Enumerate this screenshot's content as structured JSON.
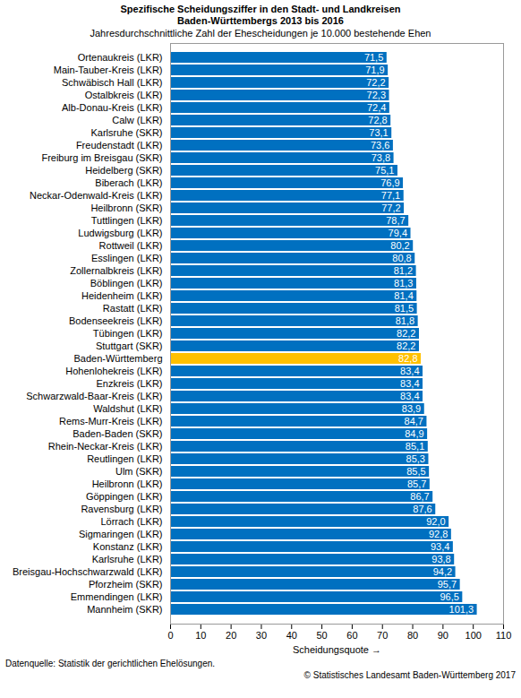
{
  "chart_data": {
    "type": "bar",
    "orientation": "horizontal",
    "title": "Spezifische Scheidungsziffer in den Stadt- und Landkreisen\nBaden-Württembergs 2013 bis 2016",
    "subtitle": "Jahresdurchschnittliche Zahl der Ehescheidungen je 10.000 bestehende Ehen",
    "xlabel": "Scheidungsquote",
    "source": "Datenquelle: Statistik der gerichtlichen Ehelösungen.",
    "copyright": "© Statistisches Landesamt Baden-Württemberg 2017",
    "categories": [
      "Ortenaukreis (LKR)",
      "Main-Tauber-Kreis (LKR)",
      "Schwäbisch Hall (LKR)",
      "Ostalbkreis (LKR)",
      "Alb-Donau-Kreis (LKR)",
      "Calw (LKR)",
      "Karlsruhe (SKR)",
      "Freudenstadt (LKR)",
      "Freiburg im Breisgau (SKR)",
      "Heidelberg (SKR)",
      "Biberach (LKR)",
      "Neckar-Odenwald-Kreis (LKR)",
      "Heilbronn (SKR)",
      "Tuttlingen (LKR)",
      "Ludwigsburg (LKR)",
      "Rottweil (LKR)",
      "Esslingen (LKR)",
      "Zollernalbkreis (LKR)",
      "Böblingen (LKR)",
      "Heidenheim (LKR)",
      "Rastatt (LKR)",
      "Bodenseekreis (LKR)",
      "Tübingen (LKR)",
      "Stuttgart (SKR)",
      "Baden-Württemberg",
      "Hohenlohekreis (LKR)",
      "Enzkreis (LKR)",
      "Schwarzwald-Baar-Kreis (LKR)",
      "Waldshut (LKR)",
      "Rems-Murr-Kreis (LKR)",
      "Baden-Baden (SKR)",
      "Rhein-Neckar-Kreis (LKR)",
      "Reutlingen (LKR)",
      "Ulm (SKR)",
      "Heilbronn (LKR)",
      "Göppingen (LKR)",
      "Ravensburg (LKR)",
      "Lörrach (LKR)",
      "Sigmaringen (LKR)",
      "Konstanz (LKR)",
      "Karlsruhe (LKR)",
      "Breisgau-Hochschwarzwald (LKR)",
      "Pforzheim (SKR)",
      "Emmendingen (LKR)",
      "Mannheim (SKR)"
    ],
    "values": [
      71.5,
      71.9,
      72.2,
      72.3,
      72.4,
      72.8,
      73.1,
      73.6,
      73.8,
      75.1,
      76.9,
      77.1,
      77.2,
      78.7,
      79.4,
      80.2,
      80.8,
      81.2,
      81.3,
      81.4,
      81.5,
      81.8,
      82.2,
      82.2,
      82.8,
      83.4,
      83.4,
      83.4,
      83.9,
      84.7,
      84.9,
      85.1,
      85.3,
      85.5,
      85.7,
      86.7,
      87.6,
      92.0,
      92.8,
      93.4,
      93.8,
      94.2,
      95.7,
      96.5,
      101.3
    ],
    "value_labels": [
      "71,5",
      "71,9",
      "72,2",
      "72,3",
      "72,4",
      "72,8",
      "73,1",
      "73,6",
      "73,8",
      "75,1",
      "76,9",
      "77,1",
      "77,2",
      "78,7",
      "79,4",
      "80,2",
      "80,8",
      "81,2",
      "81,3",
      "81,4",
      "81,5",
      "81,8",
      "82,2",
      "82,2",
      "82,8",
      "83,4",
      "83,4",
      "83,4",
      "83,9",
      "84,7",
      "84,9",
      "85,1",
      "85,3",
      "85,5",
      "85,7",
      "86,7",
      "87,6",
      "92,0",
      "92,8",
      "93,4",
      "93,8",
      "94,2",
      "95,7",
      "96,5",
      "101,3"
    ],
    "colors": [
      "#0070c0",
      "#0070c0",
      "#0070c0",
      "#0070c0",
      "#0070c0",
      "#0070c0",
      "#0070c0",
      "#0070c0",
      "#0070c0",
      "#0070c0",
      "#0070c0",
      "#0070c0",
      "#0070c0",
      "#0070c0",
      "#0070c0",
      "#0070c0",
      "#0070c0",
      "#0070c0",
      "#0070c0",
      "#0070c0",
      "#0070c0",
      "#0070c0",
      "#0070c0",
      "#0070c0",
      "#ffc000",
      "#0070c0",
      "#0070c0",
      "#0070c0",
      "#0070c0",
      "#0070c0",
      "#0070c0",
      "#0070c0",
      "#0070c0",
      "#0070c0",
      "#0070c0",
      "#0070c0",
      "#0070c0",
      "#0070c0",
      "#0070c0",
      "#0070c0",
      "#0070c0",
      "#0070c0",
      "#0070c0",
      "#0070c0",
      "#0070c0"
    ],
    "xlim": [
      0,
      110
    ],
    "xticks": [
      0,
      10,
      20,
      30,
      40,
      50,
      60,
      70,
      80,
      90,
      100,
      110
    ],
    "grid": false,
    "data_labels": true
  }
}
